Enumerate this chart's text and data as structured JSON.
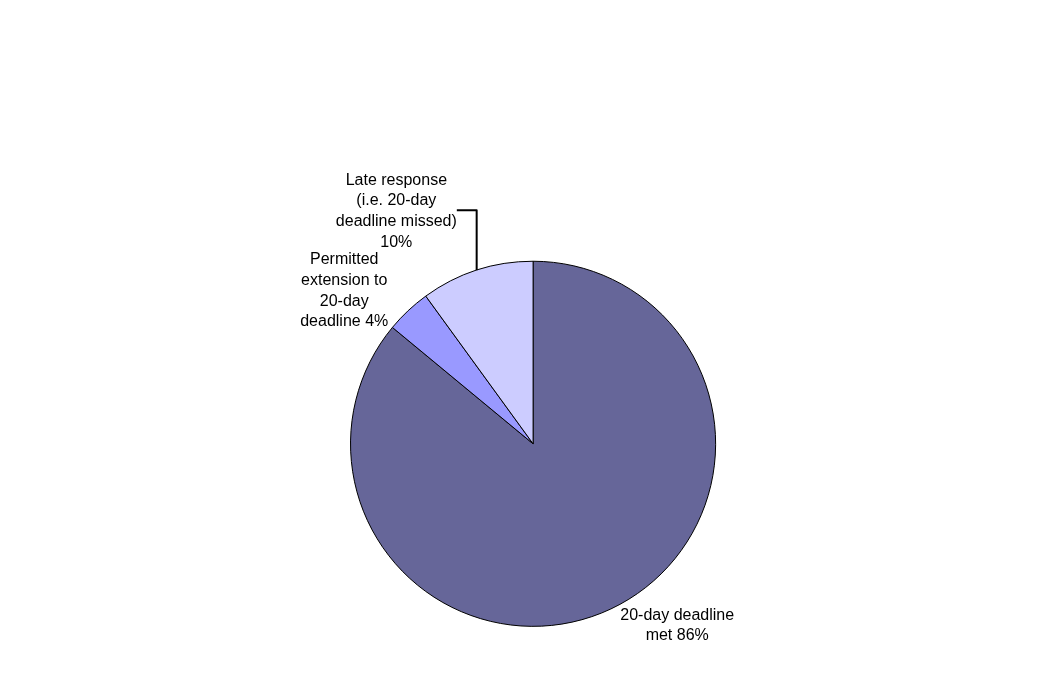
{
  "chart_data": {
    "type": "pie",
    "categories": [
      "20-day deadline met",
      "Permitted extension to 20-day deadline",
      "Late response (i.e. 20-day deadline missed)"
    ],
    "values": [
      86,
      4,
      10
    ],
    "value_labels": [
      "86%",
      "4%",
      "10%"
    ],
    "colors": [
      "#666699",
      "#9999ff",
      "#ccccff"
    ],
    "legend": false
  }
}
